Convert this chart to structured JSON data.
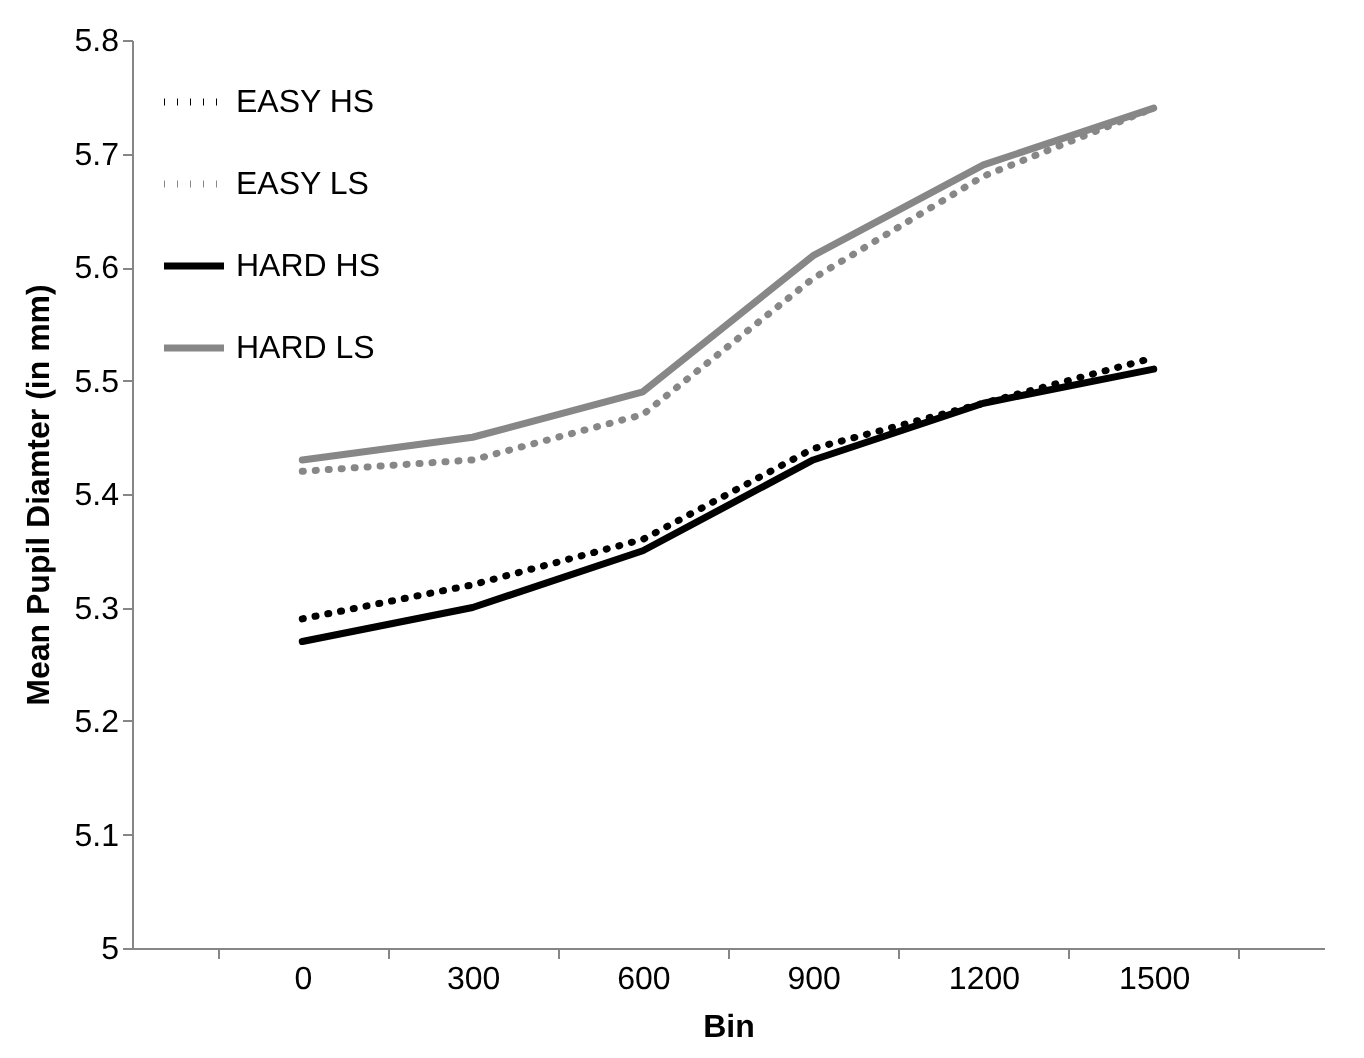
{
  "chart_data": {
    "type": "line",
    "xlabel": "Bin",
    "ylabel": "Mean Pupil Diamter (in mm)",
    "categories": [
      "0",
      "300",
      "600",
      "900",
      "1200",
      "1500"
    ],
    "series": [
      {
        "name": "EASY HS",
        "color": "#000000",
        "line_style": "dotted",
        "values": [
          5.29,
          5.32,
          5.36,
          5.44,
          5.48,
          5.52
        ]
      },
      {
        "name": "EASY LS",
        "color": "#878787",
        "line_style": "dotted",
        "values": [
          5.42,
          5.43,
          5.47,
          5.59,
          5.68,
          5.74
        ]
      },
      {
        "name": "HARD HS",
        "color": "#000000",
        "line_style": "solid",
        "values": [
          5.27,
          5.3,
          5.35,
          5.43,
          5.48,
          5.51
        ]
      },
      {
        "name": "HARD LS",
        "color": "#878787",
        "line_style": "solid",
        "values": [
          5.43,
          5.45,
          5.49,
          5.61,
          5.69,
          5.74
        ]
      }
    ],
    "ylim": [
      5,
      5.8
    ],
    "yticks": [
      5,
      5.1,
      5.2,
      5.3,
      5.4,
      5.5,
      5.6,
      5.7,
      5.8
    ],
    "grid": false,
    "legend": "top left",
    "marker": "none"
  }
}
